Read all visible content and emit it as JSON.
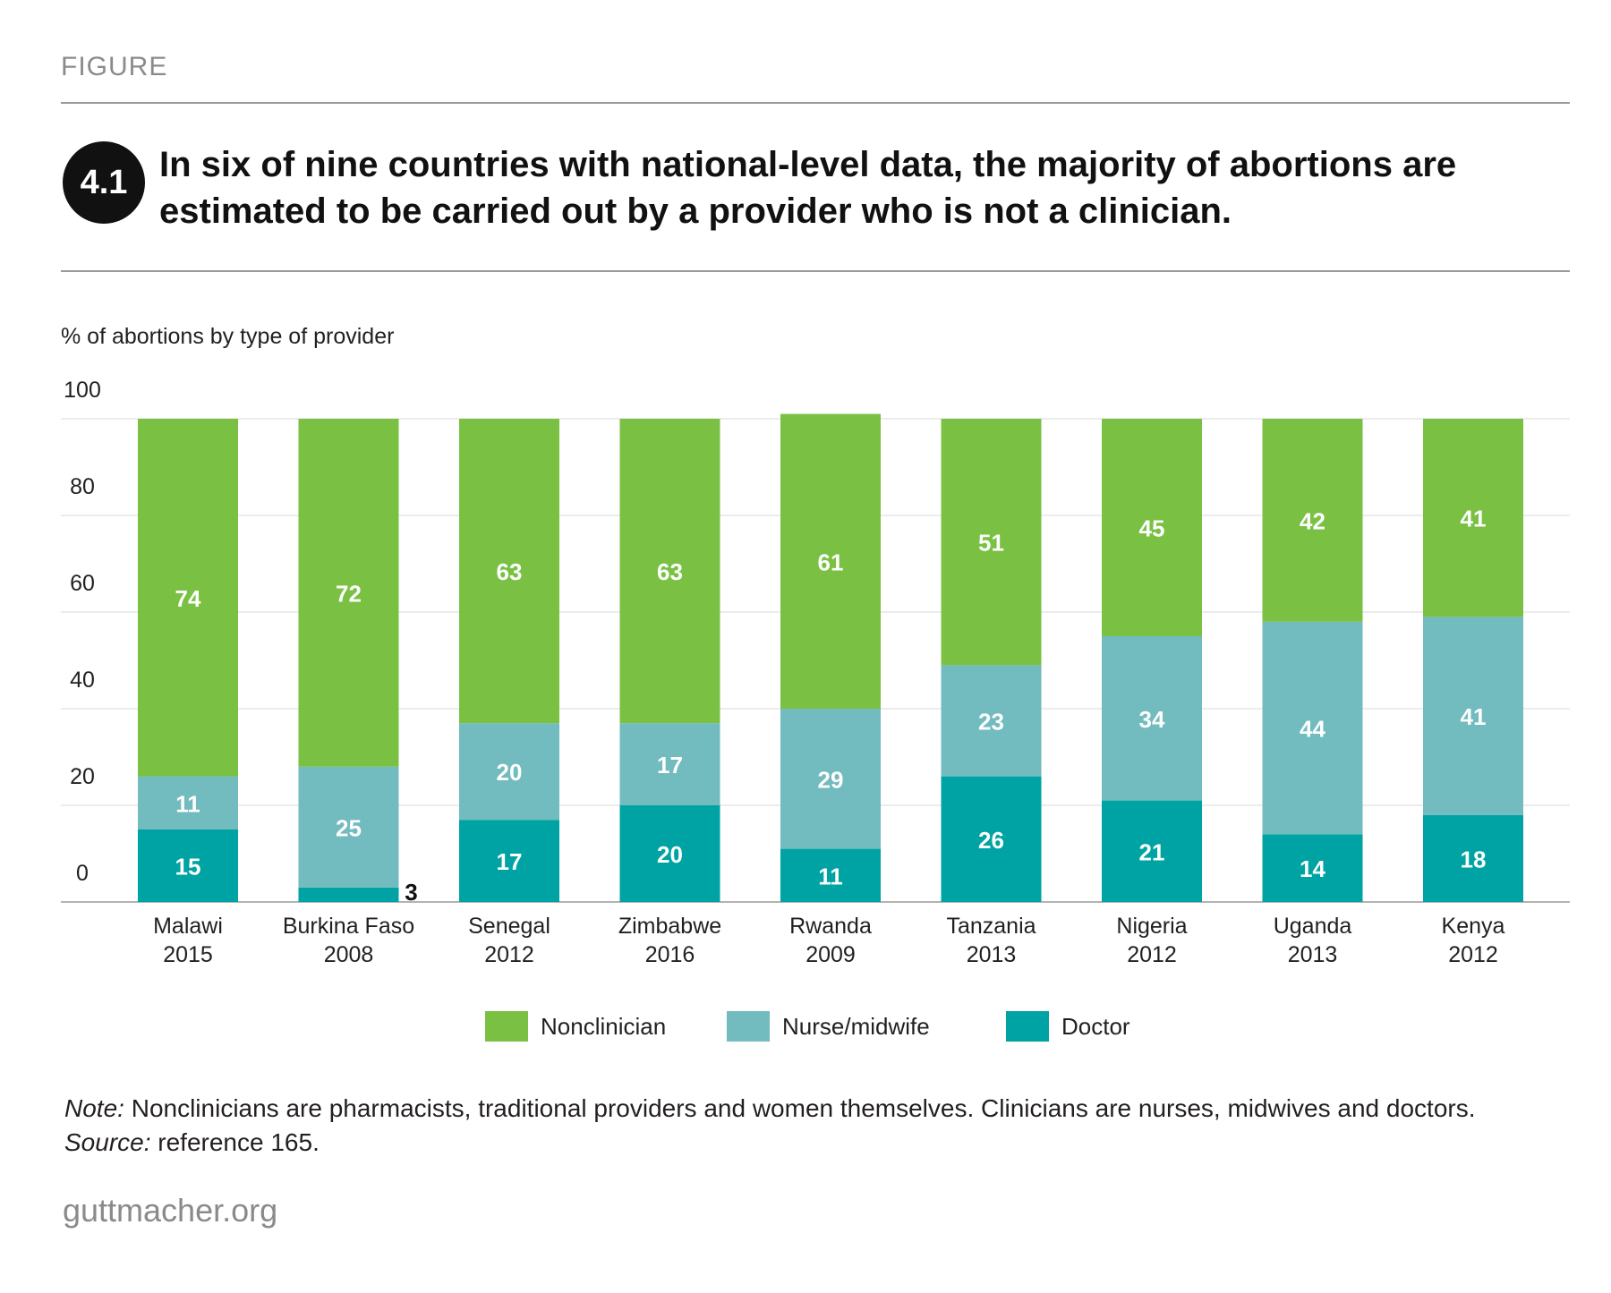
{
  "header": {
    "figure_label": "FIGURE",
    "badge": "4.1",
    "title": "In six of nine countries with national-level data, the majority of abortions are estimated to be carried out by a provider who is not a clinician."
  },
  "chart_data": {
    "type": "bar",
    "stacked": true,
    "ylabel": "% of abortions by type of provider",
    "ylim": [
      0,
      100
    ],
    "yticks": [
      0,
      20,
      40,
      60,
      80,
      100
    ],
    "grid": true,
    "legend_position": "bottom",
    "categories": [
      [
        "Malawi",
        "2015"
      ],
      [
        "Burkina Faso",
        "2008"
      ],
      [
        "Senegal",
        "2012"
      ],
      [
        "Zimbabwe",
        "2016"
      ],
      [
        "Rwanda",
        "2009"
      ],
      [
        "Tanzania",
        "2013"
      ],
      [
        "Nigeria",
        "2012"
      ],
      [
        "Uganda",
        "2013"
      ],
      [
        "Kenya",
        "2012"
      ]
    ],
    "series": [
      {
        "name": "Doctor",
        "color": "#00a3a3",
        "values": [
          15,
          3,
          17,
          20,
          11,
          26,
          21,
          14,
          18
        ]
      },
      {
        "name": "Nurse/midwife",
        "color": "#72bbbe",
        "values": [
          11,
          25,
          20,
          17,
          29,
          23,
          34,
          44,
          41
        ]
      },
      {
        "name": "Nonclinician",
        "color": "#7ac143",
        "values": [
          74,
          72,
          63,
          63,
          61,
          51,
          45,
          42,
          41
        ]
      }
    ]
  },
  "legend": [
    {
      "label": "Nonclinician",
      "color": "#7ac143"
    },
    {
      "label": "Nurse/midwife",
      "color": "#72bbbe"
    },
    {
      "label": "Doctor",
      "color": "#00a3a3"
    }
  ],
  "note": {
    "note_label": "Note:",
    "note_text": " Nonclinicians are pharmacists, traditional providers and women themselves. Clinicians are nurses, midwives and doctors. ",
    "source_label": "Source:",
    "source_text": " reference 165."
  },
  "footer": {
    "brand": "guttmacher.org"
  }
}
